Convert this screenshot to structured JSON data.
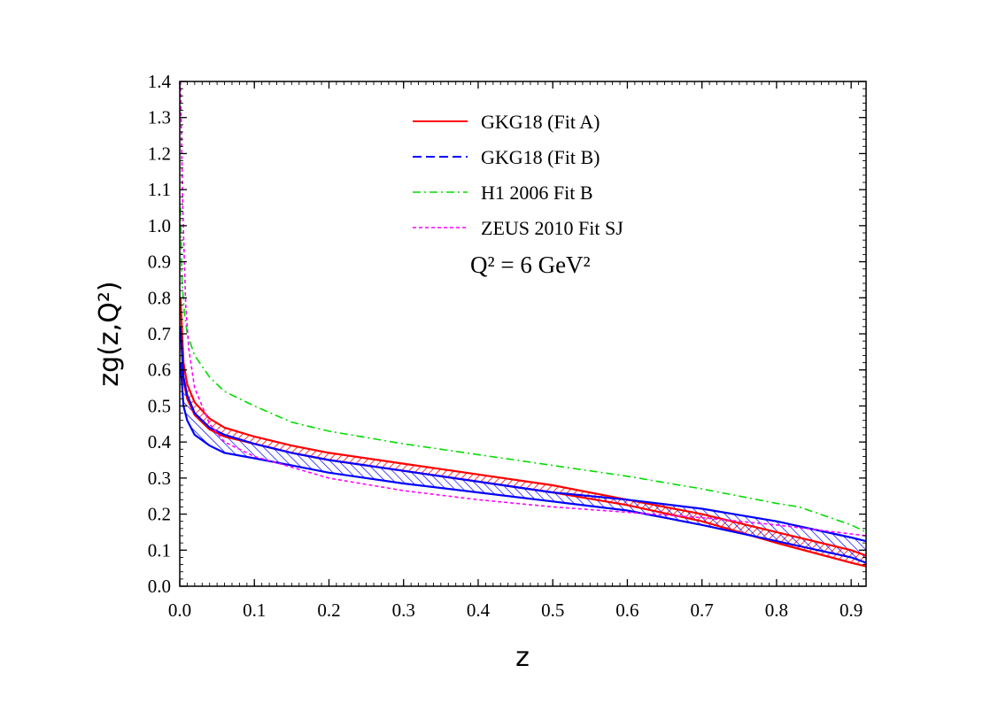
{
  "chart_data": {
    "type": "line",
    "xlabel": "z",
    "ylabel": "zg(z,Q²)",
    "xlim": [
      0.0,
      0.92
    ],
    "ylim": [
      0.0,
      1.4
    ],
    "xticks": [
      "0.0",
      "0.1",
      "0.2",
      "0.3",
      "0.4",
      "0.5",
      "0.6",
      "0.7",
      "0.8",
      "0.9"
    ],
    "yticks": [
      "0.0",
      "0.1",
      "0.2",
      "0.3",
      "0.4",
      "0.5",
      "0.6",
      "0.7",
      "0.8",
      "0.9",
      "1.0",
      "1.1",
      "1.2",
      "1.3",
      "1.4"
    ],
    "annotation": "Q² = 6 GeV²",
    "legend_position": "top-right",
    "series": [
      {
        "name": "GKG18 (Fit A)",
        "color": "#ff0000",
        "style": "solid",
        "band": true,
        "upper": [
          [
            0.001,
            0.8
          ],
          [
            0.005,
            0.62
          ],
          [
            0.01,
            0.56
          ],
          [
            0.02,
            0.51
          ],
          [
            0.04,
            0.465
          ],
          [
            0.06,
            0.44
          ],
          [
            0.1,
            0.415
          ],
          [
            0.15,
            0.39
          ],
          [
            0.2,
            0.37
          ],
          [
            0.3,
            0.34
          ],
          [
            0.4,
            0.31
          ],
          [
            0.5,
            0.28
          ],
          [
            0.6,
            0.24
          ],
          [
            0.7,
            0.2
          ],
          [
            0.8,
            0.15
          ],
          [
            0.9,
            0.1
          ],
          [
            0.92,
            0.085
          ]
        ],
        "lower": [
          [
            0.001,
            0.72
          ],
          [
            0.005,
            0.57
          ],
          [
            0.01,
            0.52
          ],
          [
            0.02,
            0.475
          ],
          [
            0.04,
            0.435
          ],
          [
            0.06,
            0.415
          ],
          [
            0.1,
            0.395
          ],
          [
            0.15,
            0.37
          ],
          [
            0.2,
            0.35
          ],
          [
            0.3,
            0.32
          ],
          [
            0.4,
            0.29
          ],
          [
            0.5,
            0.26
          ],
          [
            0.6,
            0.225
          ],
          [
            0.7,
            0.18
          ],
          [
            0.8,
            0.12
          ],
          [
            0.9,
            0.065
          ],
          [
            0.92,
            0.055
          ]
        ]
      },
      {
        "name": "GKG18 (Fit B)",
        "color": "#0000ff",
        "style": "dashed",
        "band": true,
        "upper": [
          [
            0.001,
            0.72
          ],
          [
            0.005,
            0.58
          ],
          [
            0.01,
            0.53
          ],
          [
            0.02,
            0.48
          ],
          [
            0.04,
            0.44
          ],
          [
            0.06,
            0.42
          ],
          [
            0.1,
            0.395
          ],
          [
            0.15,
            0.37
          ],
          [
            0.2,
            0.35
          ],
          [
            0.3,
            0.32
          ],
          [
            0.4,
            0.29
          ],
          [
            0.5,
            0.26
          ],
          [
            0.6,
            0.24
          ],
          [
            0.7,
            0.215
          ],
          [
            0.8,
            0.18
          ],
          [
            0.9,
            0.135
          ],
          [
            0.92,
            0.125
          ]
        ],
        "lower": [
          [
            0.001,
            0.62
          ],
          [
            0.005,
            0.5
          ],
          [
            0.01,
            0.46
          ],
          [
            0.02,
            0.42
          ],
          [
            0.04,
            0.39
          ],
          [
            0.06,
            0.37
          ],
          [
            0.1,
            0.355
          ],
          [
            0.15,
            0.335
          ],
          [
            0.2,
            0.315
          ],
          [
            0.3,
            0.285
          ],
          [
            0.4,
            0.26
          ],
          [
            0.5,
            0.235
          ],
          [
            0.6,
            0.21
          ],
          [
            0.7,
            0.17
          ],
          [
            0.8,
            0.125
          ],
          [
            0.9,
            0.08
          ],
          [
            0.92,
            0.065
          ]
        ]
      },
      {
        "name": "H1 2006 Fit B",
        "color": "#00dd00",
        "style": "dashdot",
        "points": [
          [
            0.001,
            1.05
          ],
          [
            0.003,
            0.85
          ],
          [
            0.006,
            0.76
          ],
          [
            0.01,
            0.7
          ],
          [
            0.02,
            0.64
          ],
          [
            0.04,
            0.58
          ],
          [
            0.06,
            0.54
          ],
          [
            0.1,
            0.5
          ],
          [
            0.15,
            0.455
          ],
          [
            0.2,
            0.43
          ],
          [
            0.3,
            0.395
          ],
          [
            0.4,
            0.365
          ],
          [
            0.5,
            0.335
          ],
          [
            0.6,
            0.305
          ],
          [
            0.7,
            0.27
          ],
          [
            0.8,
            0.23
          ],
          [
            0.83,
            0.22
          ],
          [
            0.9,
            0.17
          ],
          [
            0.92,
            0.15
          ]
        ]
      },
      {
        "name": "ZEUS 2010 Fit SJ",
        "color": "#ff00ff",
        "style": "dotted",
        "points": [
          [
            0.001,
            1.4
          ],
          [
            0.004,
            1.05
          ],
          [
            0.008,
            0.78
          ],
          [
            0.012,
            0.66
          ],
          [
            0.02,
            0.55
          ],
          [
            0.04,
            0.45
          ],
          [
            0.06,
            0.4
          ],
          [
            0.1,
            0.36
          ],
          [
            0.15,
            0.33
          ],
          [
            0.2,
            0.3
          ],
          [
            0.3,
            0.265
          ],
          [
            0.4,
            0.24
          ],
          [
            0.5,
            0.22
          ],
          [
            0.6,
            0.205
          ],
          [
            0.7,
            0.19
          ],
          [
            0.8,
            0.17
          ],
          [
            0.9,
            0.145
          ],
          [
            0.92,
            0.14
          ]
        ]
      }
    ]
  }
}
